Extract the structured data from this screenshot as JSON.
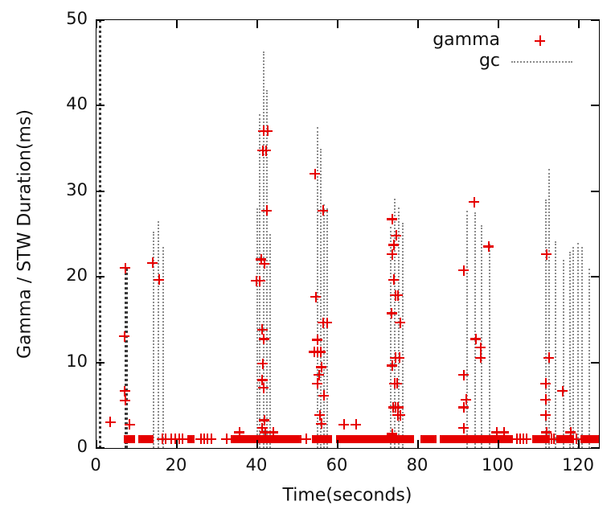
{
  "chart_data": {
    "type": "scatter",
    "title": "",
    "xlabel": "Time(seconds)",
    "ylabel": "Gamma / STW Duration(ms)",
    "xlim": [
      0,
      125
    ],
    "ylim": [
      0,
      50
    ],
    "xticks": [
      0,
      20,
      40,
      60,
      80,
      100,
      120
    ],
    "yticks": [
      0,
      10,
      20,
      30,
      40,
      50
    ],
    "grid": false,
    "legend_position": "top-right-inside",
    "axis_color": "#000000",
    "series": [
      {
        "name": "gamma",
        "type": "scatter",
        "marker": "plus",
        "color": "#e60000",
        "points": [
          [
            3.5,
            3.0
          ],
          [
            7.0,
            13.0
          ],
          [
            7.2,
            21.0
          ],
          [
            7.1,
            6.6
          ],
          [
            7.2,
            5.5
          ],
          [
            8.3,
            2.7
          ],
          [
            14.0,
            21.6
          ],
          [
            15.6,
            19.6
          ],
          [
            35.6,
            1.8
          ],
          [
            39.8,
            19.5
          ],
          [
            40.7,
            19.5
          ],
          [
            41.0,
            22.0
          ],
          [
            41.8,
            21.5
          ],
          [
            41.6,
            37.0
          ],
          [
            42.6,
            37.0
          ],
          [
            41.4,
            34.7
          ],
          [
            42.2,
            34.7
          ],
          [
            42.4,
            27.7
          ],
          [
            41.3,
            13.8
          ],
          [
            41.7,
            12.7
          ],
          [
            41.4,
            9.8
          ],
          [
            41.3,
            7.9
          ],
          [
            41.6,
            7.0
          ],
          [
            41.8,
            3.2
          ],
          [
            41.3,
            2.3
          ],
          [
            42.0,
            1.8
          ],
          [
            44.0,
            1.8
          ],
          [
            54.4,
            32.0
          ],
          [
            56.4,
            27.7
          ],
          [
            54.6,
            17.6
          ],
          [
            56.4,
            14.6
          ],
          [
            57.4,
            14.6
          ],
          [
            55.0,
            12.6
          ],
          [
            54.2,
            11.2
          ],
          [
            55.0,
            11.2
          ],
          [
            55.8,
            11.2
          ],
          [
            56.0,
            9.4
          ],
          [
            55.4,
            8.5
          ],
          [
            55.0,
            7.5
          ],
          [
            56.6,
            6.1
          ],
          [
            55.6,
            3.8
          ],
          [
            56.0,
            2.8
          ],
          [
            61.6,
            2.7
          ],
          [
            64.6,
            2.7
          ],
          [
            73.6,
            26.7
          ],
          [
            74.6,
            24.8
          ],
          [
            74.0,
            23.7
          ],
          [
            73.6,
            22.6
          ],
          [
            74.0,
            19.6
          ],
          [
            74.4,
            17.8
          ],
          [
            75.0,
            17.8
          ],
          [
            73.5,
            15.7
          ],
          [
            75.6,
            14.6
          ],
          [
            74.4,
            10.5
          ],
          [
            75.4,
            10.5
          ],
          [
            73.6,
            9.6
          ],
          [
            74.2,
            7.5
          ],
          [
            74.8,
            7.5
          ],
          [
            73.9,
            4.7
          ],
          [
            74.5,
            4.7
          ],
          [
            75.1,
            4.7
          ],
          [
            75.0,
            3.8
          ],
          [
            75.6,
            3.8
          ],
          [
            73.6,
            1.6
          ],
          [
            91.4,
            20.7
          ],
          [
            94.0,
            28.7
          ],
          [
            97.6,
            23.5
          ],
          [
            94.4,
            12.7
          ],
          [
            95.6,
            11.7
          ],
          [
            95.6,
            10.5
          ],
          [
            91.4,
            8.5
          ],
          [
            92.0,
            5.6
          ],
          [
            91.4,
            4.7
          ],
          [
            91.4,
            2.3
          ],
          [
            99.6,
            1.8
          ],
          [
            101.4,
            1.8
          ],
          [
            112.0,
            22.6
          ],
          [
            112.6,
            10.5
          ],
          [
            111.8,
            7.5
          ],
          [
            111.8,
            5.6
          ],
          [
            111.8,
            3.8
          ],
          [
            112.0,
            1.8
          ],
          [
            116.0,
            6.6
          ],
          [
            118.0,
            1.8
          ]
        ],
        "baseline": {
          "value": 1,
          "runs": [
            [
              6.8,
              9.6
            ],
            [
              10.4,
              14.2
            ],
            [
              22.6,
              24.4
            ],
            [
              33.4,
              51.0
            ],
            [
              53.5,
              58.5
            ],
            [
              59.5,
              79.0
            ],
            [
              80.6,
              84.6
            ],
            [
              85.4,
              103.6
            ],
            [
              108.4,
              112.8
            ],
            [
              114.4,
              118.8
            ],
            [
              120.4,
              125.0
            ]
          ],
          "points": [
            16.4,
            17.2,
            18.6,
            19.6,
            20.6,
            21.4,
            26.0,
            26.8,
            27.6,
            28.6,
            32.4,
            52.2,
            104.6,
            105.4,
            106.2,
            107.0,
            113.2,
            113.8,
            119.4
          ]
        }
      },
      {
        "name": "gc",
        "type": "impulses",
        "style": "dotted",
        "color": "#8c8c8c",
        "dark_color": "#3a3a3a",
        "impulses": [
          [
            14.0,
            25.3
          ],
          [
            15.2,
            26.5
          ],
          [
            16.4,
            23.5
          ],
          [
            39.8,
            28.0
          ],
          [
            40.4,
            39.0
          ],
          [
            41.4,
            46.3
          ],
          [
            42.2,
            41.8
          ],
          [
            43.0,
            25.0
          ],
          [
            54.8,
            37.5
          ],
          [
            55.6,
            35.0
          ],
          [
            56.4,
            28.5
          ],
          [
            57.2,
            28.0
          ],
          [
            73.0,
            25.8
          ],
          [
            74.0,
            29.1
          ],
          [
            75.0,
            28.1
          ],
          [
            76.0,
            26.3
          ],
          [
            92.0,
            27.7
          ],
          [
            94.0,
            27.5
          ],
          [
            95.6,
            26.0
          ],
          [
            97.6,
            23.9
          ],
          [
            111.6,
            29.0
          ],
          [
            112.4,
            32.6
          ],
          [
            114.0,
            24.2
          ],
          [
            116.0,
            22.0
          ],
          [
            117.6,
            22.9
          ],
          [
            118.4,
            23.5
          ],
          [
            119.6,
            24.0
          ],
          [
            120.6,
            23.5
          ],
          [
            122.4,
            21.0
          ]
        ],
        "dark_impulses": [
          [
            0.5,
            50.0
          ],
          [
            6.9,
            21.0
          ],
          [
            7.1,
            21.0
          ]
        ]
      }
    ]
  }
}
